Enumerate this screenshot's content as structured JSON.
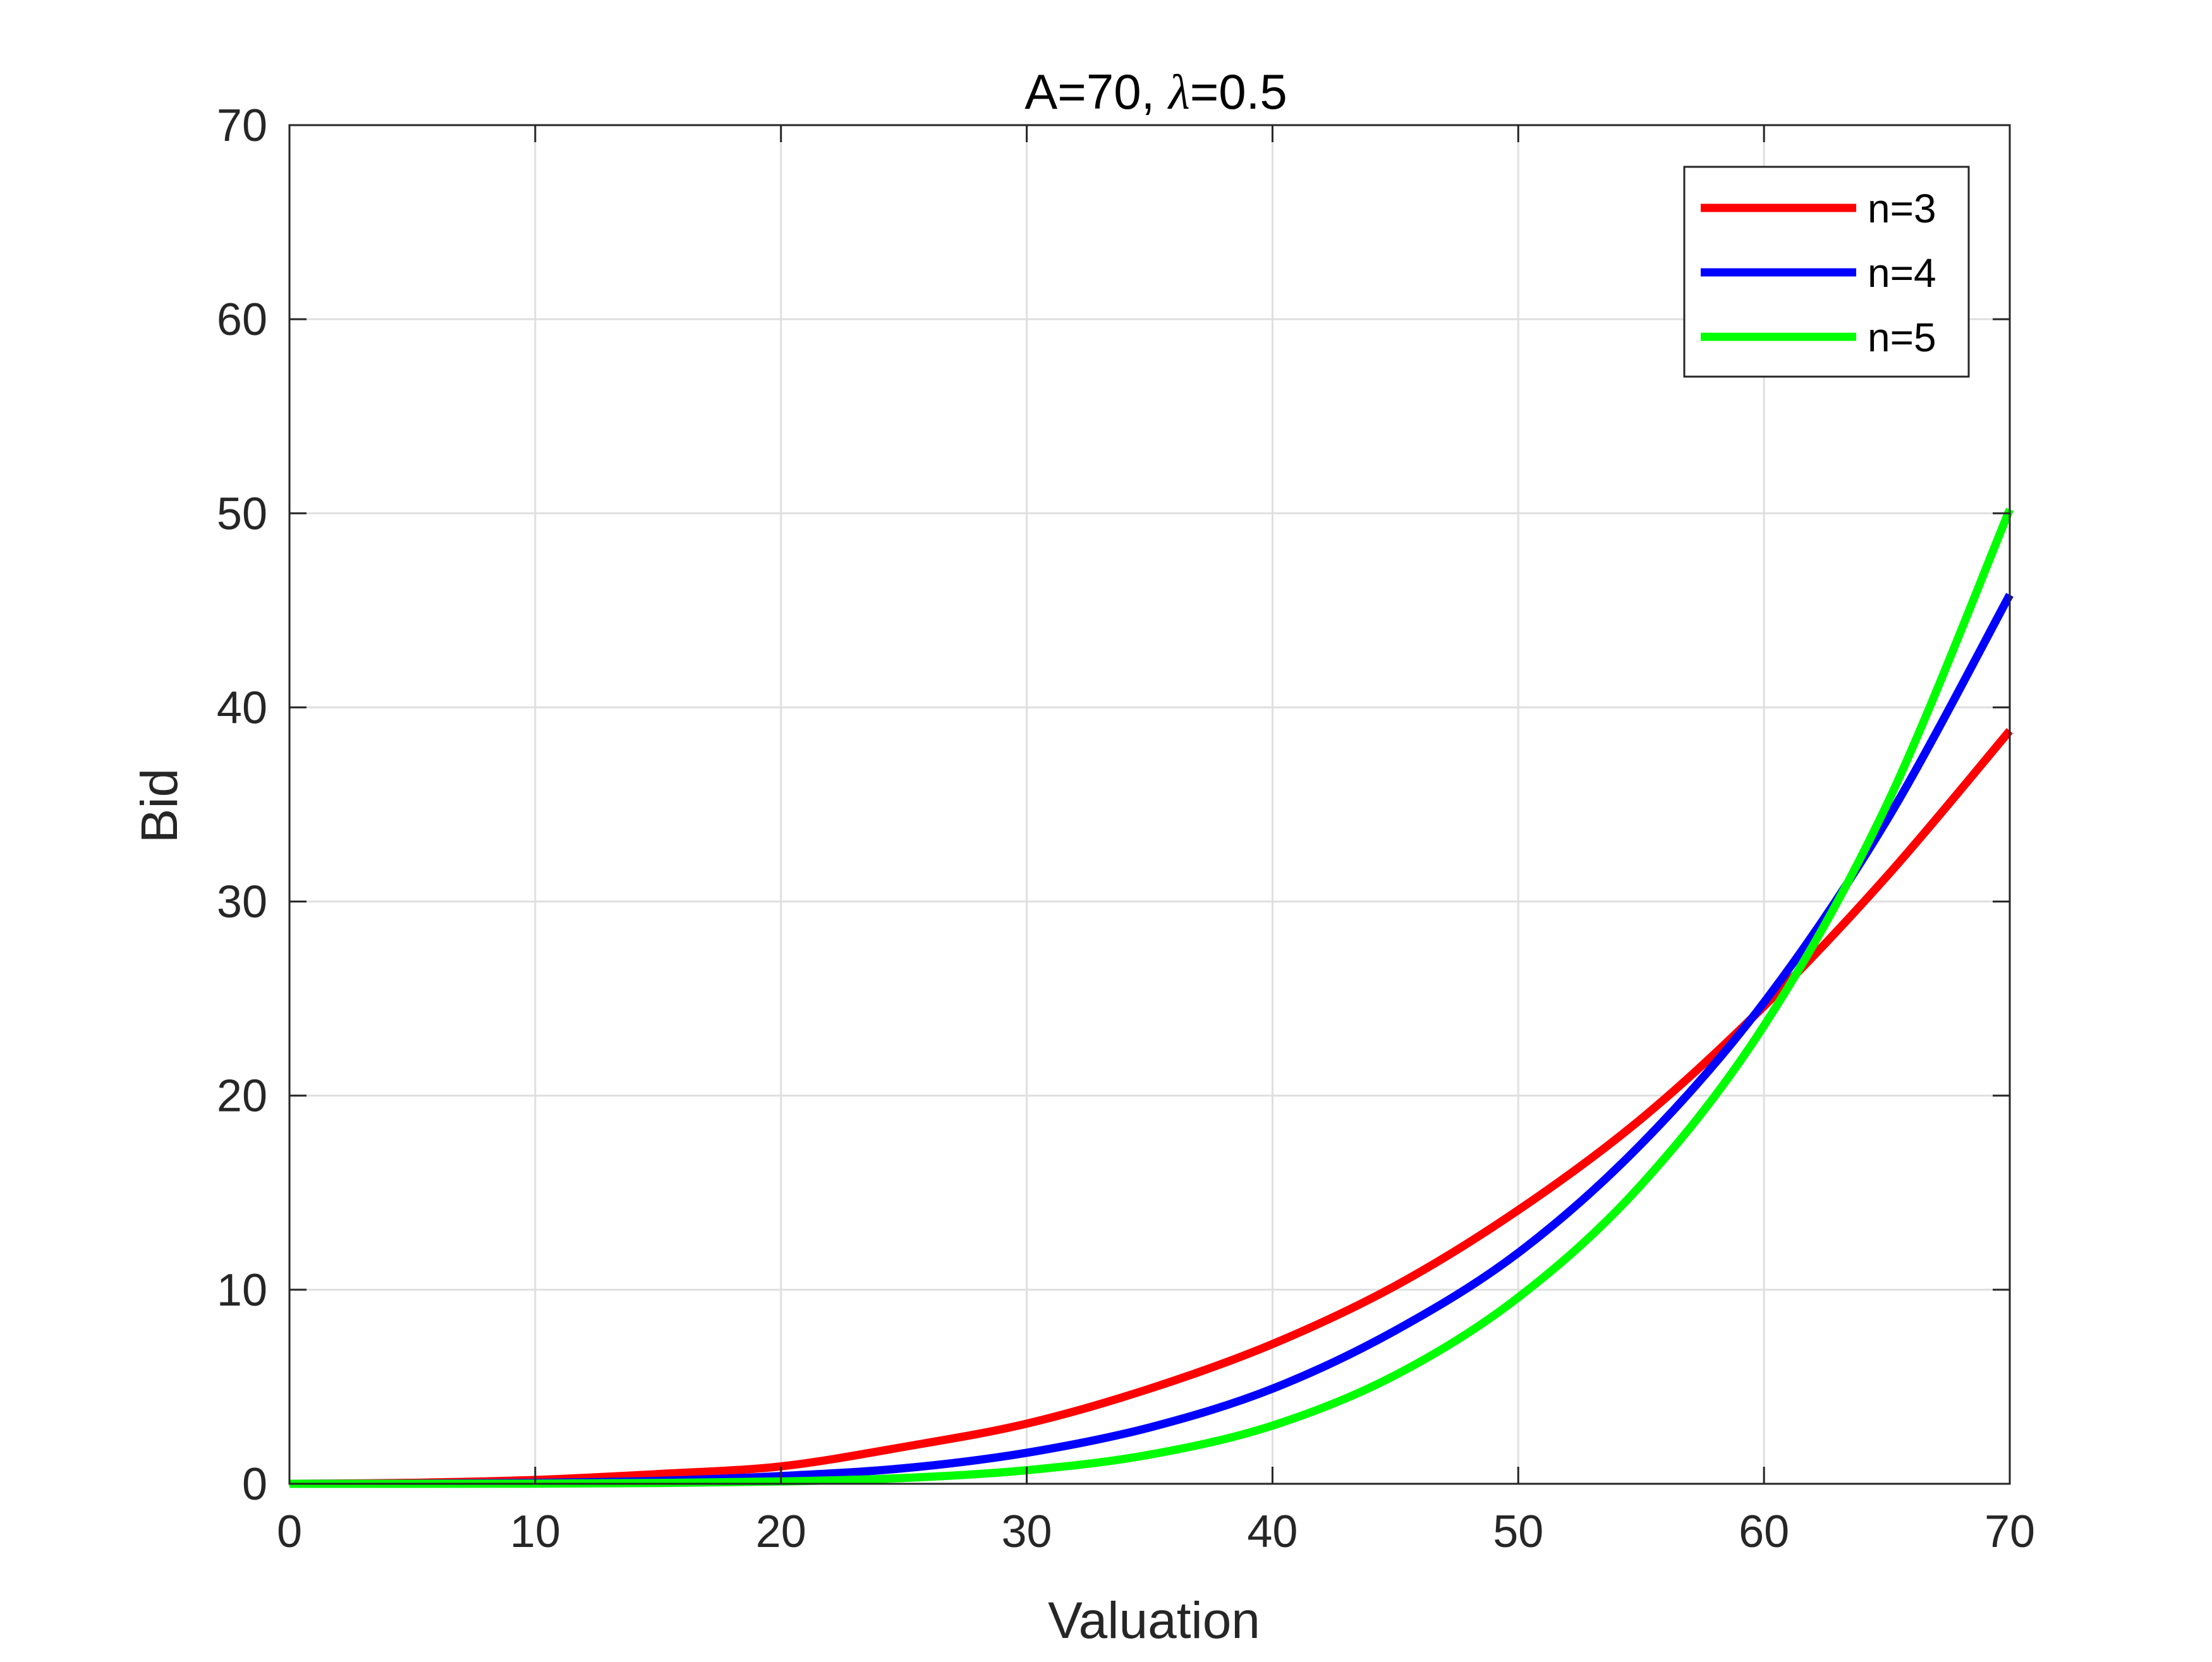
{
  "chart_data": {
    "type": "line",
    "title": "A=70, λ=0.5",
    "title_prefix": "A=70, ",
    "title_symbol": "λ",
    "title_suffix": "=0.5",
    "xlabel": "Valuation",
    "ylabel": "Bid",
    "xlim": [
      0,
      70
    ],
    "ylim": [
      0,
      70
    ],
    "xticks": [
      0,
      10,
      20,
      30,
      40,
      50,
      60,
      70
    ],
    "yticks": [
      0,
      10,
      20,
      30,
      40,
      50,
      60,
      70
    ],
    "grid": true,
    "legend_position": "top-right",
    "x": [
      0,
      5,
      10,
      15,
      20,
      25,
      30,
      35,
      40,
      45,
      50,
      55,
      60,
      65,
      70
    ],
    "series": [
      {
        "name": "n=3",
        "color": "#ff0000",
        "values": [
          0,
          0.05,
          0.2,
          0.5,
          0.9,
          1.9,
          3.1,
          4.9,
          7.2,
          10.2,
          14.1,
          18.8,
          24.6,
          31.3,
          38.8
        ]
      },
      {
        "name": "n=4",
        "color": "#0000ff",
        "values": [
          0,
          0.01,
          0.05,
          0.15,
          0.4,
          0.8,
          1.6,
          2.9,
          4.9,
          7.9,
          11.9,
          17.5,
          24.8,
          34.2,
          45.8
        ]
      },
      {
        "name": "n=5",
        "color": "#00ff00",
        "values": [
          0,
          0,
          0.01,
          0.04,
          0.12,
          0.3,
          0.7,
          1.5,
          3.0,
          5.6,
          9.6,
          15.4,
          23.6,
          35.0,
          50.2
        ]
      }
    ]
  }
}
